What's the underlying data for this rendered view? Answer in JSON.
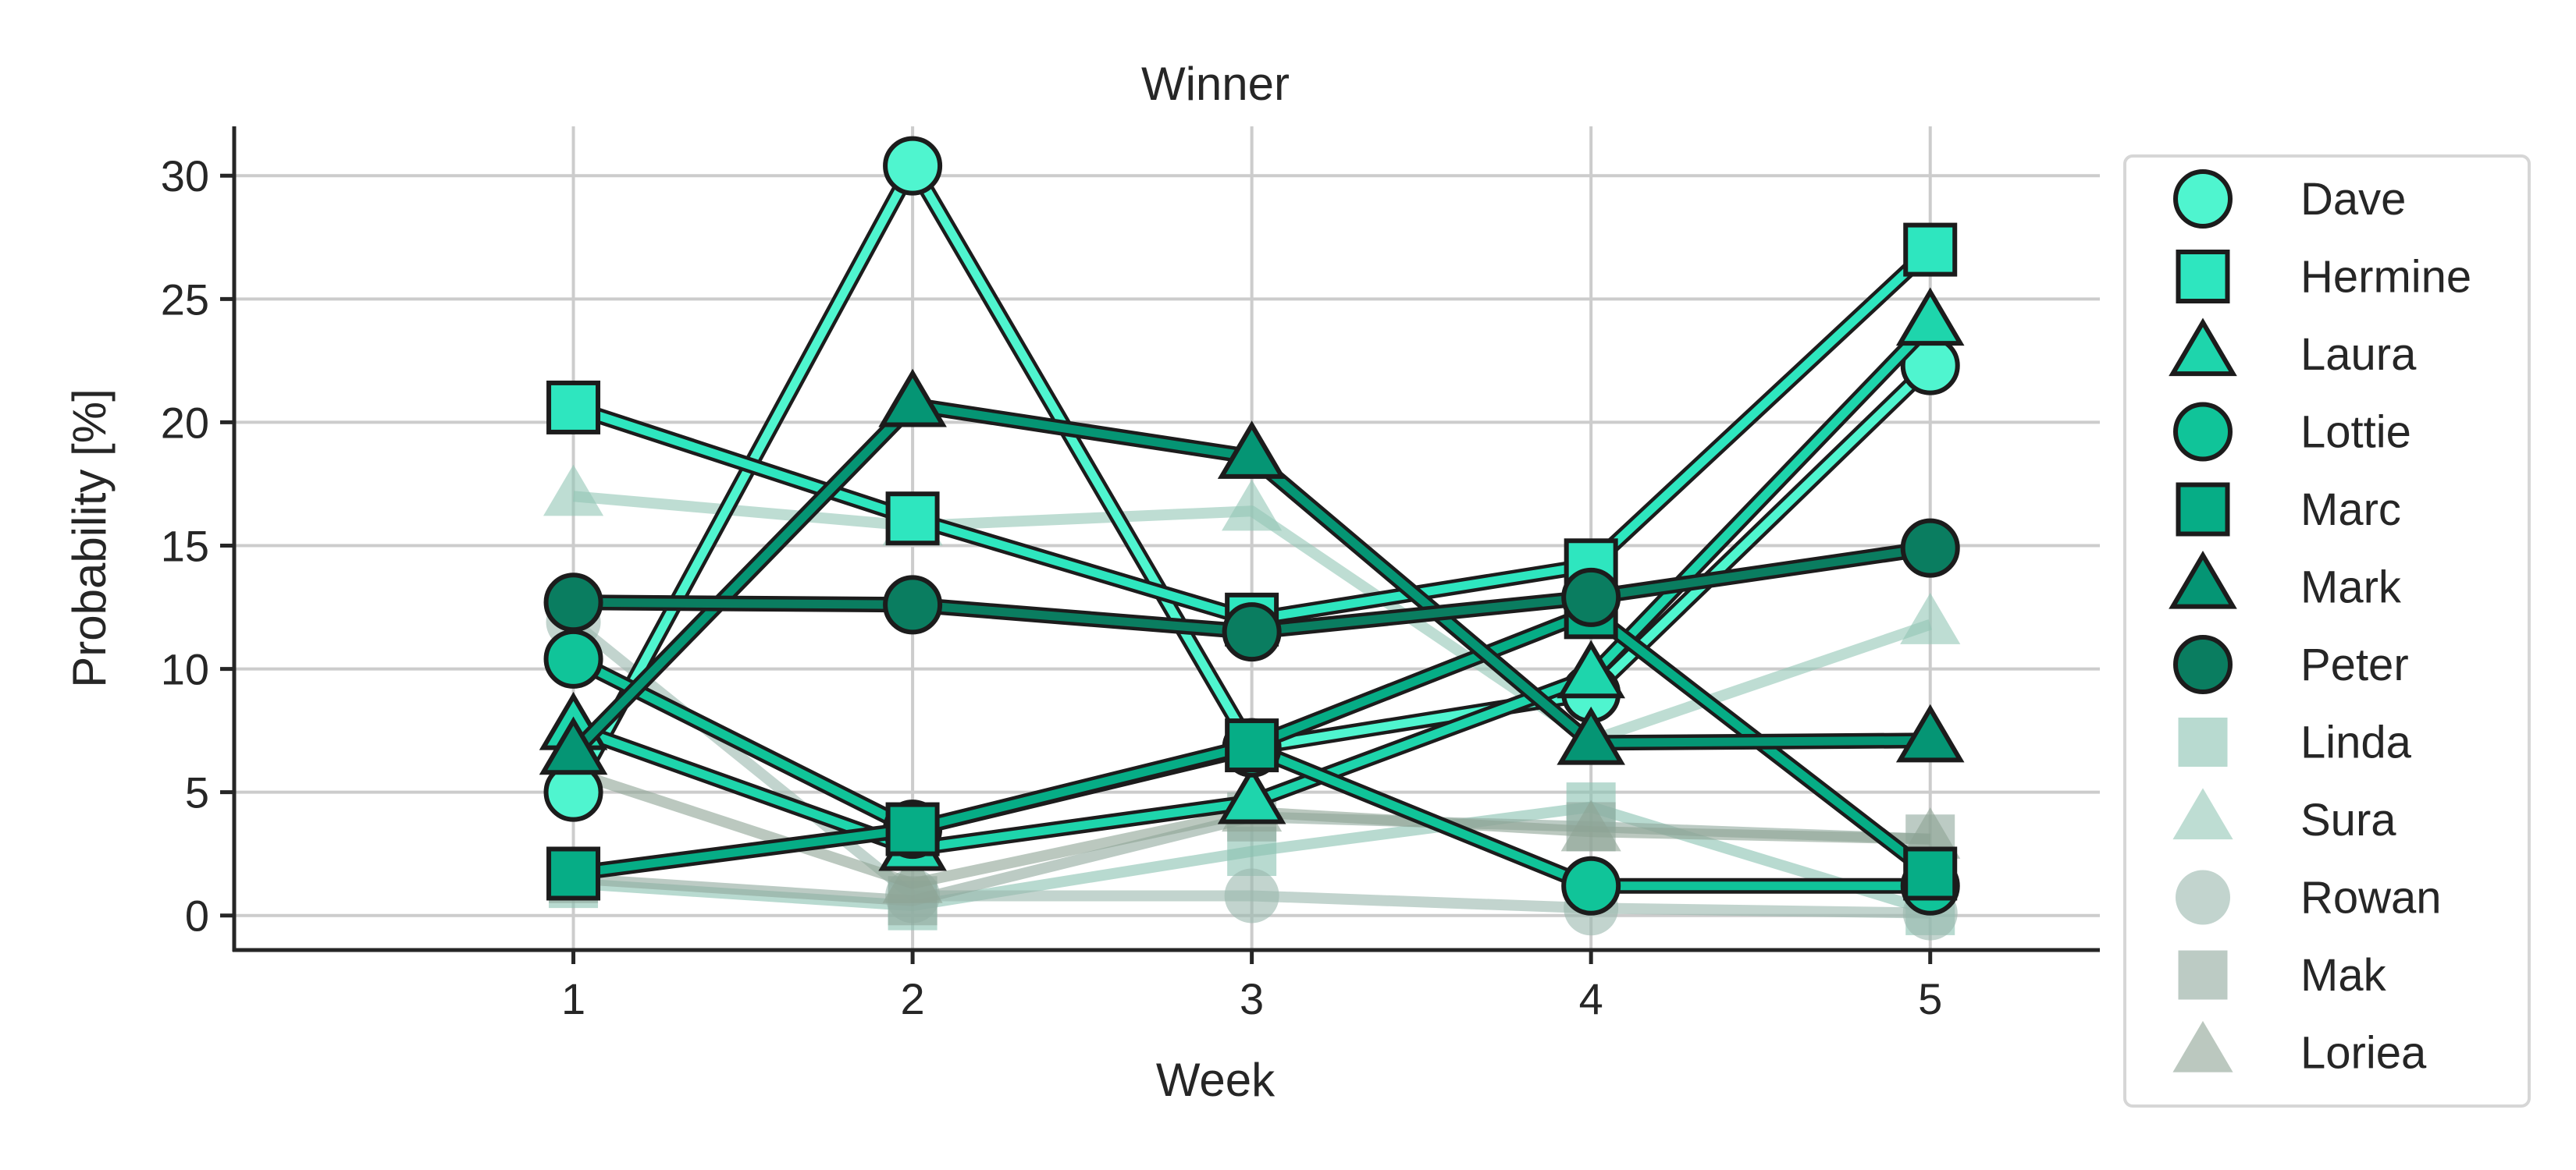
{
  "chart_data": {
    "type": "line",
    "title": "Winner",
    "xlabel": "Week",
    "ylabel": "Probability [%]",
    "x": [
      1,
      2,
      3,
      4,
      5
    ],
    "xlim": [
      0,
      5.5
    ],
    "ylim": [
      -1.4,
      32
    ],
    "xticks": [
      1,
      2,
      3,
      4,
      5
    ],
    "yticks": [
      0,
      5,
      10,
      15,
      20,
      25,
      30
    ],
    "grid": true,
    "legend_position": "outside-right",
    "series": [
      {
        "name": "Dave",
        "marker": "circle",
        "color": "#4ff5cf",
        "faded": false,
        "values": [
          5.0,
          30.4,
          6.8,
          9.0,
          22.3
        ]
      },
      {
        "name": "Hermine",
        "marker": "square",
        "color": "#2ee6bf",
        "faded": false,
        "values": [
          20.6,
          16.1,
          12.0,
          14.2,
          27.0
        ]
      },
      {
        "name": "Laura",
        "marker": "triangle",
        "color": "#1ed5ac",
        "faded": false,
        "values": [
          7.6,
          2.7,
          4.6,
          9.7,
          24.0
        ]
      },
      {
        "name": "Lottie",
        "marker": "circle",
        "color": "#10c499",
        "faded": false,
        "values": [
          10.4,
          3.5,
          6.8,
          1.2,
          1.2
        ]
      },
      {
        "name": "Marc",
        "marker": "square",
        "color": "#06ad86",
        "faded": false,
        "values": [
          1.7,
          3.5,
          6.9,
          12.3,
          1.7
        ]
      },
      {
        "name": "Mark",
        "marker": "triangle",
        "color": "#059574",
        "faded": false,
        "values": [
          6.6,
          20.7,
          18.6,
          7.0,
          7.1
        ]
      },
      {
        "name": "Peter",
        "marker": "circle",
        "color": "#0a7d60",
        "faded": false,
        "values": [
          12.7,
          12.6,
          11.5,
          12.9,
          14.9
        ]
      },
      {
        "name": "Linda",
        "marker": "square",
        "color": "#89c2b0",
        "faded": true,
        "values": [
          1.3,
          0.4,
          2.6,
          4.4,
          0.2
        ]
      },
      {
        "name": "Sura",
        "marker": "triangle",
        "color": "#92c7b5",
        "faded": true,
        "values": [
          17.0,
          15.8,
          16.4,
          7.1,
          11.8
        ]
      },
      {
        "name": "Rowan",
        "marker": "circle",
        "color": "#99b8ad",
        "faded": true,
        "values": [
          11.9,
          0.8,
          0.8,
          0.3,
          0.1
        ]
      },
      {
        "name": "Mak",
        "marker": "square",
        "color": "#8fa89d",
        "faded": true,
        "values": [
          1.5,
          0.6,
          4.0,
          3.6,
          3.1
        ]
      },
      {
        "name": "Loriea",
        "marker": "triangle",
        "color": "#8da394",
        "faded": true,
        "values": [
          5.8,
          1.3,
          4.2,
          3.4,
          3.1
        ]
      }
    ]
  }
}
